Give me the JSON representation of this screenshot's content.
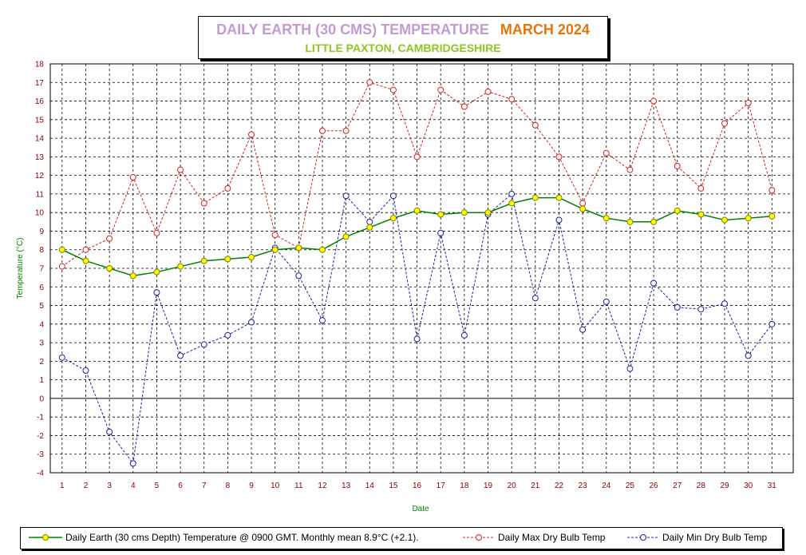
{
  "title": {
    "main": "DAILY EARTH (30 CMS) TEMPERATURE",
    "month": "MARCH 2024",
    "subtitle": "LITTLE PAXTON, CAMBRIDGESHIRE"
  },
  "colors": {
    "title_main": "#c39bd3",
    "title_month": "#e8740c",
    "subtitle": "#8cc820",
    "axis_label": "#008000",
    "tick_y": "#8b0000",
    "tick_x": "#8b0000",
    "earth_line": "#008000",
    "earth_marker": "#ffff00",
    "max_series": "#d62020",
    "min_series": "#1f1fa8"
  },
  "legend": {
    "earth": "Daily Earth (30 cms Depth) Temperature @ 0900 GMT. Monthly mean 8.9°C (+2.1).",
    "max": "Daily Max Dry Bulb Temp",
    "min": "Daily Min Dry Bulb Temp"
  },
  "chart_data": {
    "type": "line",
    "xlabel": "Date",
    "ylabel": "Temperature (°C)",
    "ylim": [
      -4,
      18
    ],
    "grid": true,
    "legend_position": "bottom",
    "x": [
      1,
      2,
      3,
      4,
      5,
      6,
      7,
      8,
      9,
      10,
      11,
      12,
      13,
      14,
      15,
      16,
      17,
      18,
      19,
      20,
      21,
      22,
      23,
      24,
      25,
      26,
      27,
      28,
      29,
      30,
      31
    ],
    "series": [
      {
        "name": "Daily Earth (30 cms Depth) Temperature @ 0900 GMT. Monthly mean 8.9°C (+2.1).",
        "key": "earth",
        "values": [
          8.0,
          7.4,
          7.0,
          6.6,
          6.8,
          7.1,
          7.4,
          7.5,
          7.6,
          8.0,
          8.1,
          8.0,
          8.7,
          9.2,
          9.7,
          10.1,
          9.9,
          10.0,
          10.0,
          10.5,
          10.8,
          10.8,
          10.2,
          9.7,
          9.5,
          9.5,
          10.1,
          9.9,
          9.6,
          9.7,
          9.8
        ]
      },
      {
        "name": "Daily Max Dry Bulb Temp",
        "key": "max",
        "values": [
          7.1,
          8.0,
          8.6,
          11.9,
          8.9,
          12.3,
          10.5,
          11.3,
          14.2,
          8.8,
          8.1,
          14.4,
          14.4,
          17.0,
          16.6,
          13.0,
          16.6,
          15.7,
          16.5,
          16.1,
          14.7,
          13.0,
          10.5,
          13.2,
          12.3,
          16.0,
          12.5,
          11.3,
          14.8,
          15.9,
          11.2
        ]
      },
      {
        "name": "Daily Min Dry Bulb Temp",
        "key": "min",
        "values": [
          2.2,
          1.5,
          -1.8,
          -3.5,
          5.7,
          2.3,
          2.9,
          3.4,
          4.1,
          8.1,
          6.6,
          4.2,
          10.9,
          9.5,
          10.9,
          3.2,
          8.9,
          3.4,
          9.9,
          11.0,
          5.4,
          9.6,
          3.7,
          5.2,
          1.6,
          6.2,
          4.9,
          4.8,
          5.1,
          2.3,
          4.0
        ]
      }
    ]
  }
}
